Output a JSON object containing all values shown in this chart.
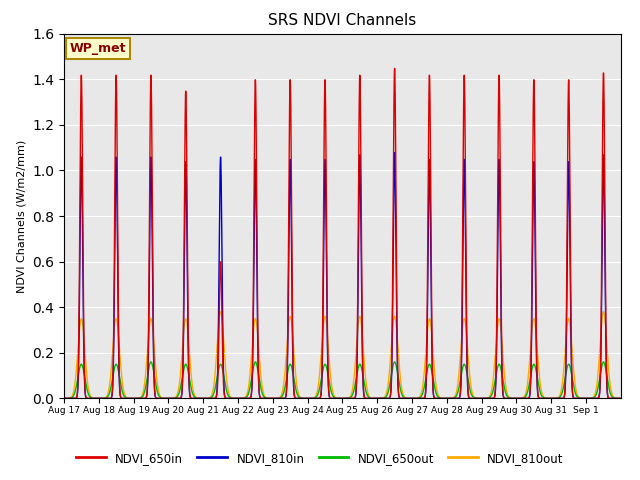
{
  "title": "SRS NDVI Channels",
  "ylabel": "NDVI Channels (W/m2/mm)",
  "ylim": [
    0.0,
    1.6
  ],
  "yticks": [
    0.0,
    0.2,
    0.4,
    0.6,
    0.8,
    1.0,
    1.2,
    1.4,
    1.6
  ],
  "bg_color": "#e8e8e8",
  "annotation_text": "WP_met",
  "annotation_bg": "#ffffcc",
  "annotation_border": "#aa8800",
  "legend_labels": [
    "NDVI_650in",
    "NDVI_810in",
    "NDVI_650out",
    "NDVI_810out"
  ],
  "legend_colors": [
    "#dd0000",
    "#0000cc",
    "#00bb00",
    "#ffaa00"
  ],
  "n_days": 16,
  "start_day": 17,
  "samples_per_day": 200,
  "sigma_in": 0.04,
  "sigma_out": 0.1,
  "peak_650in": [
    1.42,
    1.42,
    1.42,
    1.35,
    0.6,
    1.4,
    1.4,
    1.4,
    1.42,
    1.45,
    1.42,
    1.42,
    1.42,
    1.4,
    1.4,
    1.43
  ],
  "peak_810in": [
    1.06,
    1.06,
    1.06,
    1.04,
    1.06,
    1.05,
    1.05,
    1.05,
    1.07,
    1.08,
    1.05,
    1.05,
    1.05,
    1.04,
    1.04,
    1.07
  ],
  "peak_650out": [
    0.15,
    0.15,
    0.16,
    0.15,
    0.15,
    0.16,
    0.15,
    0.15,
    0.15,
    0.16,
    0.15,
    0.15,
    0.15,
    0.15,
    0.15,
    0.16
  ],
  "peak_810out": [
    0.35,
    0.35,
    0.35,
    0.35,
    0.38,
    0.35,
    0.36,
    0.36,
    0.36,
    0.36,
    0.35,
    0.35,
    0.35,
    0.35,
    0.35,
    0.38
  ],
  "tick_labels": [
    "Aug 17",
    "Aug 18",
    "Aug 19",
    "Aug 20",
    "Aug 21",
    "Aug 22",
    "Aug 23",
    "Aug 24",
    "Aug 25",
    "Aug 26",
    "Aug 27",
    "Aug 28",
    "Aug 29",
    "Aug 30",
    "Aug 31",
    "Sep 1"
  ]
}
